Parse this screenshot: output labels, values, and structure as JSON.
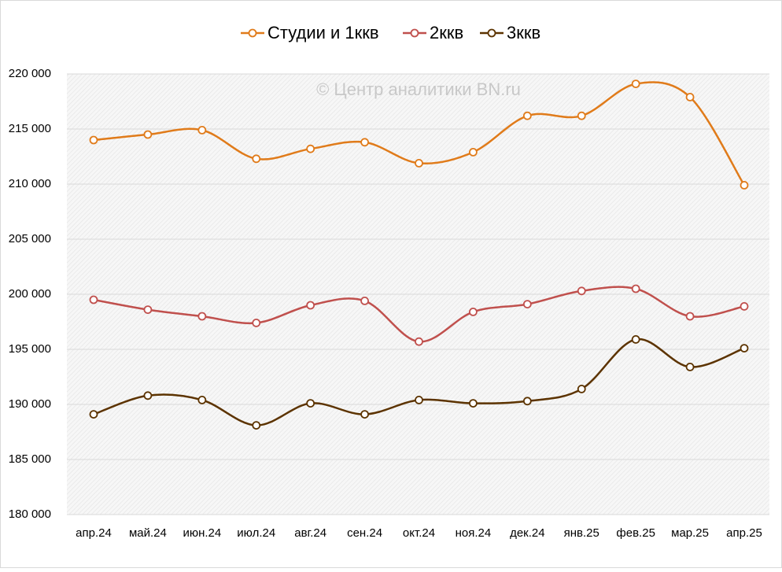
{
  "chart_data": {
    "type": "line",
    "annotations": [
      "© Центр аналитики BN.ru"
    ],
    "categories": [
      "апр.24",
      "май.24",
      "июн.24",
      "июл.24",
      "авг.24",
      "сен.24",
      "окт.24",
      "ноя.24",
      "дек.24",
      "янв.25",
      "фев.25",
      "мар.25",
      "апр.25"
    ],
    "series": [
      {
        "name": "Студии и 1ккв",
        "color": "#e07b1a",
        "values": [
          214000,
          214500,
          214900,
          212300,
          213200,
          213800,
          211900,
          212900,
          216200,
          216200,
          219100,
          217900,
          209900
        ]
      },
      {
        "name": "2ккв",
        "color": "#c0504d",
        "values": [
          199500,
          198600,
          198000,
          197400,
          199000,
          199400,
          195700,
          198400,
          199100,
          200300,
          200500,
          198000,
          198900
        ]
      },
      {
        "name": "3ккв",
        "color": "#5c3300",
        "values": [
          189100,
          190800,
          190400,
          188100,
          190100,
          189100,
          190400,
          190100,
          190300,
          191400,
          195900,
          193400,
          195100
        ]
      }
    ],
    "ylim": [
      180000,
      220000
    ],
    "yticks": [
      {
        "value": 180000,
        "label": "180 000"
      },
      {
        "value": 185000,
        "label": "185 000"
      },
      {
        "value": 190000,
        "label": "190 000"
      },
      {
        "value": 195000,
        "label": "195 000"
      },
      {
        "value": 200000,
        "label": "200 000"
      },
      {
        "value": 205000,
        "label": "205 000"
      },
      {
        "value": 210000,
        "label": "210 000"
      },
      {
        "value": 215000,
        "label": "215 000"
      },
      {
        "value": 220000,
        "label": "220 000"
      }
    ],
    "grid": true,
    "smooth": true,
    "legend": "top"
  }
}
